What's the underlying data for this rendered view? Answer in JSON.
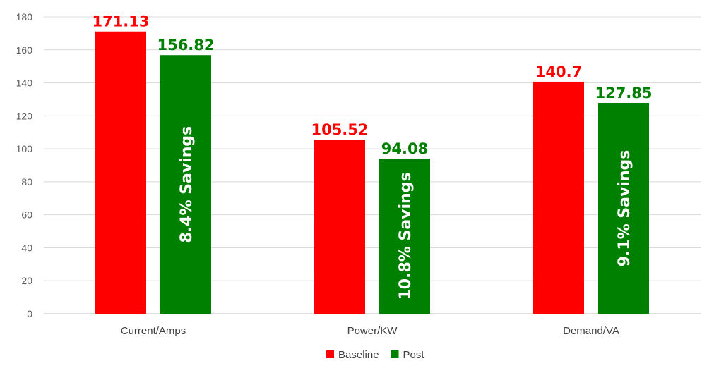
{
  "chart_data": {
    "type": "bar",
    "categories": [
      "Current/Amps",
      "Power/KW",
      "Demand/VA"
    ],
    "series": [
      {
        "name": "Baseline",
        "color": "#ff0000",
        "values": [
          171.13,
          105.52,
          140.7
        ]
      },
      {
        "name": "Post",
        "color": "#008000",
        "values": [
          156.82,
          94.08,
          127.85
        ]
      }
    ],
    "data_labels": {
      "Baseline": [
        "171.13",
        "105.52",
        "140.7"
      ],
      "Post": [
        "156.82",
        "94.08",
        "127.85"
      ]
    },
    "annotations": [
      "8.4%  Savings",
      "10.8%  Savings",
      "9.1%  Savings"
    ],
    "yticks": [
      "0",
      "20",
      "40",
      "60",
      "80",
      "100",
      "120",
      "140",
      "160",
      "180"
    ],
    "ylim": [
      0,
      180
    ],
    "grid": true,
    "legend_position": "bottom",
    "title": "",
    "xlabel": "",
    "ylabel": ""
  }
}
